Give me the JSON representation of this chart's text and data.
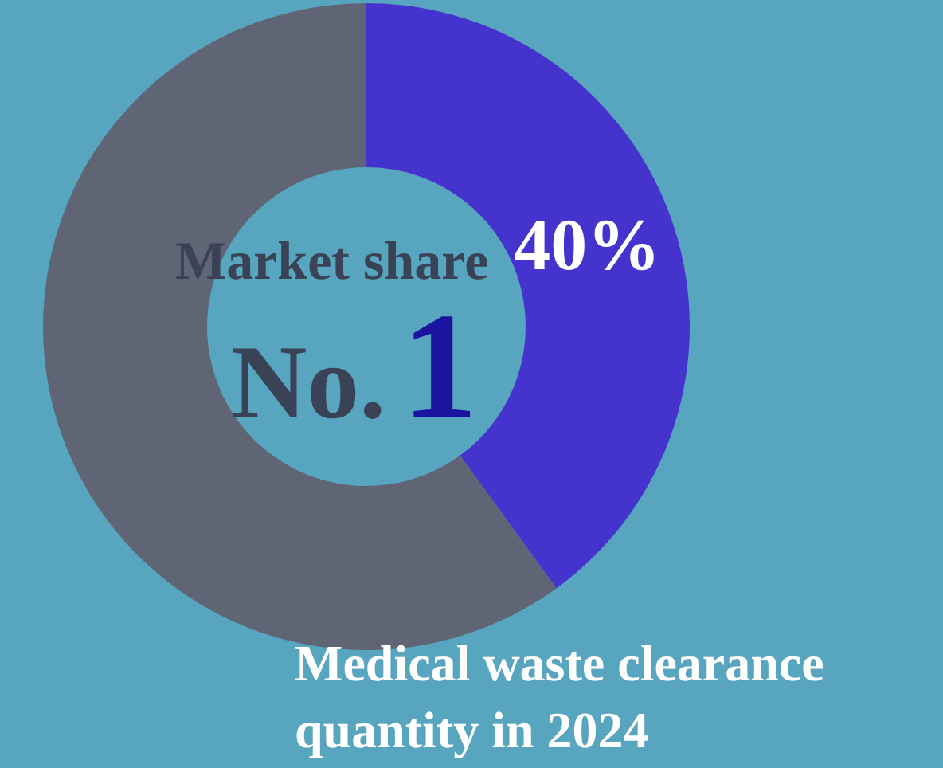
{
  "chart_data": {
    "type": "donut",
    "categories": [
      null,
      null
    ],
    "values": [
      40,
      60
    ],
    "colors": [
      "#4433cc",
      "#5f6575"
    ],
    "value_labels": [
      "40%",
      null
    ],
    "annotations": [
      "Market share",
      "No.",
      "1",
      "Medical waste clearance quantity in 2024"
    ]
  }
}
